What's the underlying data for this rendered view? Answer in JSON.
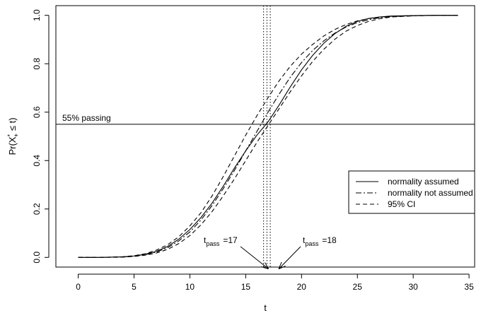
{
  "chart_data": {
    "type": "line",
    "title": "",
    "xlabel": "t",
    "ylabel": {
      "prefix": "Pr(X",
      "sup": "*",
      "sub": "+",
      "suffix": " ≤ t)"
    },
    "xlim": [
      -2,
      35.5
    ],
    "ylim": [
      -0.04,
      1.04
    ],
    "x_ticks": [
      0,
      5,
      10,
      15,
      20,
      25,
      30,
      35
    ],
    "y_ticks": [
      0.0,
      0.2,
      0.4,
      0.6,
      0.8,
      1.0
    ],
    "x_tick_labels": [
      "0",
      "5",
      "10",
      "15",
      "20",
      "25",
      "30",
      "35"
    ],
    "y_tick_labels": [
      "0.0",
      "0.2",
      "0.4",
      "0.6",
      "0.8",
      "1.0"
    ],
    "hline": {
      "y": 0.55,
      "label": "55% passing"
    },
    "vlines": [
      16.6,
      16.9,
      17.2
    ],
    "series": [
      {
        "name": "normality assumed",
        "style": "solid",
        "x": [
          0,
          2,
          4,
          5,
          6,
          7,
          8,
          9,
          10,
          11,
          12,
          13,
          14,
          15,
          16,
          17,
          18,
          19,
          20,
          21,
          22,
          23,
          24,
          25,
          26,
          27,
          28,
          30,
          32,
          34
        ],
        "y": [
          0.0,
          0.0,
          0.002,
          0.006,
          0.013,
          0.025,
          0.045,
          0.075,
          0.115,
          0.165,
          0.225,
          0.295,
          0.37,
          0.44,
          0.505,
          0.56,
          0.63,
          0.705,
          0.775,
          0.835,
          0.885,
          0.925,
          0.955,
          0.975,
          0.987,
          0.993,
          0.997,
          0.999,
          1.0,
          1.0
        ]
      },
      {
        "name": "normality not assumed",
        "style": "dashdot",
        "x": [
          0,
          2,
          4,
          5,
          6,
          7,
          8,
          9,
          10,
          11,
          12,
          13,
          14,
          15,
          16,
          17,
          18,
          19,
          20,
          21,
          22,
          23,
          24,
          25,
          26,
          27,
          28,
          30,
          32,
          34
        ],
        "y": [
          0.0,
          0.0,
          0.002,
          0.005,
          0.011,
          0.022,
          0.04,
          0.068,
          0.105,
          0.155,
          0.215,
          0.285,
          0.36,
          0.44,
          0.52,
          0.6,
          0.675,
          0.745,
          0.805,
          0.855,
          0.895,
          0.927,
          0.952,
          0.97,
          0.982,
          0.99,
          0.995,
          0.998,
          1.0,
          1.0
        ]
      },
      {
        "name": "95% CI",
        "style": "dashed",
        "x": [
          0,
          2,
          4,
          5,
          6,
          7,
          8,
          9,
          10,
          11,
          12,
          13,
          14,
          15,
          16,
          17,
          18,
          19,
          20,
          21,
          22,
          23,
          24,
          25,
          26,
          27,
          28,
          30,
          32,
          34
        ],
        "y": [
          0.0,
          0.0,
          0.003,
          0.007,
          0.015,
          0.03,
          0.052,
          0.085,
          0.13,
          0.185,
          0.255,
          0.335,
          0.42,
          0.505,
          0.585,
          0.66,
          0.73,
          0.79,
          0.84,
          0.88,
          0.915,
          0.942,
          0.962,
          0.977,
          0.987,
          0.993,
          0.996,
          0.999,
          1.0,
          1.0
        ]
      },
      {
        "name": "",
        "style": "dashed",
        "x": [
          0,
          2,
          4,
          5,
          6,
          7,
          8,
          9,
          10,
          11,
          12,
          13,
          14,
          15,
          16,
          17,
          18,
          19,
          20,
          21,
          22,
          23,
          24,
          25,
          26,
          27,
          28,
          30,
          32,
          34
        ],
        "y": [
          0.0,
          0.0,
          0.001,
          0.004,
          0.009,
          0.018,
          0.033,
          0.057,
          0.09,
          0.135,
          0.19,
          0.255,
          0.325,
          0.4,
          0.475,
          0.545,
          0.615,
          0.685,
          0.75,
          0.81,
          0.86,
          0.902,
          0.935,
          0.958,
          0.975,
          0.986,
          0.993,
          0.998,
          1.0,
          1.0
        ]
      }
    ],
    "legend": {
      "position": "right",
      "entries": [
        {
          "label": "normality assumed",
          "style": "solid"
        },
        {
          "label": "normality not assumed",
          "style": "dashdot"
        },
        {
          "label": "95% CI",
          "style": "dashed"
        }
      ]
    },
    "annotations": [
      {
        "name": "tpass-17",
        "t": "t",
        "sub": "pass",
        "value": "=17",
        "arrow_to_x": 17.0
      },
      {
        "name": "tpass-18",
        "t": "t",
        "sub": "pass",
        "value": "=18",
        "arrow_to_x": 18.0
      }
    ]
  }
}
